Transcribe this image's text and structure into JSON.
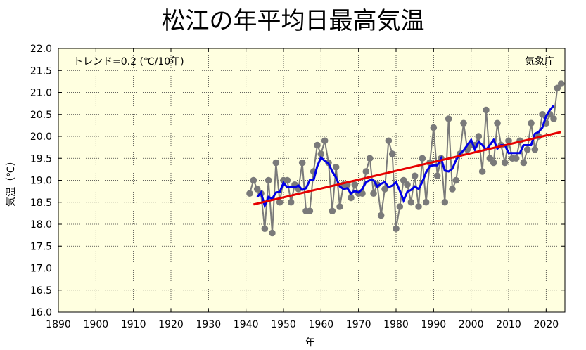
{
  "chart_data": {
    "type": "line",
    "title": "松江の年平均日最高気温",
    "xlabel": "年",
    "ylabel": "気温（℃）",
    "xlim": [
      1890,
      2025
    ],
    "ylim": [
      16.0,
      22.0
    ],
    "xticks": [
      1890,
      1900,
      1910,
      1920,
      1930,
      1940,
      1950,
      1960,
      1970,
      1980,
      1990,
      2000,
      2010,
      2020
    ],
    "yticks": [
      "16.0",
      "16.5",
      "17.0",
      "17.5",
      "18.0",
      "18.5",
      "19.0",
      "19.5",
      "20.0",
      "20.5",
      "21.0",
      "21.5",
      "22.0"
    ],
    "grid": true,
    "annotations": {
      "trend": "トレンド=0.2 (℃/10年)",
      "source": "気象庁"
    },
    "colors": {
      "annual": "#7a7a7a",
      "moving_average": "#0000e6",
      "trend": "#e60000",
      "background": "#ffffe0"
    },
    "series": [
      {
        "name": "annual",
        "x": [
          1941,
          1942,
          1943,
          1944,
          1945,
          1946,
          1947,
          1948,
          1949,
          1950,
          1951,
          1952,
          1953,
          1954,
          1955,
          1956,
          1957,
          1958,
          1959,
          1960,
          1961,
          1962,
          1963,
          1964,
          1965,
          1966,
          1967,
          1968,
          1969,
          1970,
          1971,
          1972,
          1973,
          1974,
          1975,
          1976,
          1977,
          1978,
          1979,
          1980,
          1981,
          1982,
          1983,
          1984,
          1985,
          1986,
          1987,
          1988,
          1989,
          1990,
          1991,
          1992,
          1993,
          1994,
          1995,
          1996,
          1997,
          1998,
          1999,
          2000,
          2001,
          2002,
          2003,
          2004,
          2005,
          2006,
          2007,
          2008,
          2009,
          2010,
          2011,
          2012,
          2013,
          2014,
          2015,
          2016,
          2017,
          2018,
          2019,
          2020,
          2021,
          2022,
          2023,
          2024
        ],
        "values": [
          18.7,
          19.0,
          18.8,
          18.7,
          17.9,
          19.0,
          17.8,
          19.4,
          18.5,
          19.0,
          19.0,
          18.5,
          18.9,
          18.8,
          19.4,
          18.3,
          18.3,
          19.2,
          19.8,
          19.6,
          19.9,
          19.4,
          18.3,
          19.3,
          18.4,
          18.9,
          18.9,
          18.6,
          18.9,
          18.7,
          18.7,
          19.2,
          19.5,
          18.7,
          18.9,
          18.2,
          18.8,
          19.9,
          19.6,
          17.9,
          18.4,
          19.0,
          18.9,
          18.5,
          19.1,
          18.4,
          19.5,
          18.5,
          19.4,
          20.2,
          19.1,
          19.5,
          18.5,
          20.4,
          18.8,
          19.0,
          19.6,
          20.3,
          19.7,
          19.8,
          19.8,
          20.0,
          19.2,
          20.6,
          19.5,
          19.4,
          20.3,
          19.8,
          19.4,
          19.9,
          19.5,
          19.5,
          19.9,
          19.4,
          19.7,
          20.3,
          19.7,
          20.0,
          20.5,
          20.3,
          20.5,
          20.4,
          21.1,
          21.2
        ]
      },
      {
        "name": "moving_average",
        "x": [
          1943,
          1944,
          1945,
          1946,
          1947,
          1948,
          1949,
          1950,
          1951,
          1952,
          1953,
          1954,
          1955,
          1956,
          1957,
          1958,
          1959,
          1960,
          1961,
          1962,
          1963,
          1964,
          1965,
          1966,
          1967,
          1968,
          1969,
          1970,
          1971,
          1972,
          1973,
          1974,
          1975,
          1976,
          1977,
          1978,
          1979,
          1980,
          1981,
          1982,
          1983,
          1984,
          1985,
          1986,
          1987,
          1988,
          1989,
          1990,
          1991,
          1992,
          1993,
          1994,
          1995,
          1996,
          1997,
          1998,
          1999,
          2000,
          2001,
          2002,
          2003,
          2004,
          2005,
          2006,
          2007,
          2008,
          2009,
          2010,
          2011,
          2012,
          2013,
          2014,
          2015,
          2016,
          2017,
          2018,
          2019,
          2020,
          2021,
          2022
        ],
        "values": [
          18.62,
          18.72,
          18.42,
          18.62,
          18.58,
          18.72,
          18.74,
          18.94,
          18.84,
          18.86,
          18.84,
          18.88,
          18.78,
          18.82,
          19.0,
          19.0,
          19.32,
          19.52,
          19.44,
          19.38,
          19.2,
          19.06,
          18.86,
          18.8,
          18.82,
          18.7,
          18.76,
          18.72,
          18.8,
          18.96,
          19.0,
          19.0,
          18.86,
          18.92,
          18.96,
          18.84,
          18.88,
          18.96,
          18.76,
          18.54,
          18.74,
          18.78,
          18.86,
          18.8,
          18.96,
          19.18,
          19.32,
          19.34,
          19.34,
          19.5,
          19.22,
          19.2,
          19.26,
          19.46,
          19.6,
          19.68,
          19.8,
          19.92,
          19.7,
          19.88,
          19.8,
          19.7,
          19.8,
          19.92,
          19.72,
          19.8,
          19.8,
          19.62,
          19.62,
          19.62,
          19.62,
          19.8,
          19.8,
          19.8,
          20.06,
          20.1,
          20.2,
          20.46,
          20.6,
          20.7
        ]
      },
      {
        "name": "trend",
        "x": [
          1942,
          2024
        ],
        "values": [
          18.45,
          20.1
        ]
      }
    ]
  }
}
